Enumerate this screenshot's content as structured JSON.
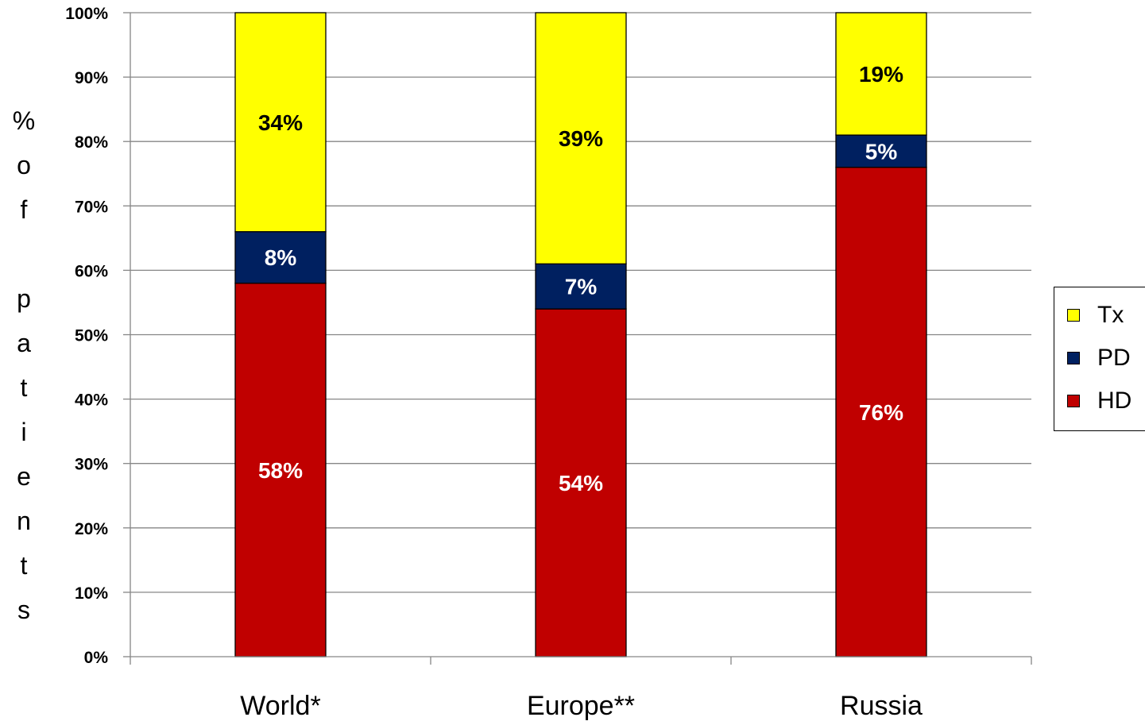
{
  "chart_data": {
    "type": "bar",
    "stacked": true,
    "percent_stacked": true,
    "categories": [
      "World*",
      "Europe**",
      "Russia"
    ],
    "series": [
      {
        "name": "HD",
        "values": [
          58,
          54,
          76
        ],
        "labels": [
          "58%",
          "54%",
          "76%"
        ],
        "color": "#C00000",
        "label_color": "#FFFFFF"
      },
      {
        "name": "PD",
        "values": [
          8,
          7,
          5
        ],
        "labels": [
          "8%",
          "7%",
          "5%"
        ],
        "color": "#002060",
        "label_color": "#FFFFFF"
      },
      {
        "name": "Tx",
        "values": [
          34,
          39,
          19
        ],
        "labels": [
          "34%",
          "39%",
          "19%"
        ],
        "color": "#FFFF00",
        "label_color": "#000000"
      }
    ],
    "ylabel": "% of patients",
    "ylabel_chars": [
      "%",
      "o",
      "f",
      "",
      "p",
      "a",
      "t",
      "i",
      "e",
      "n",
      "t",
      "s"
    ],
    "ylim": [
      0,
      100
    ],
    "yticks": [
      "0%",
      "10%",
      "20%",
      "30%",
      "40%",
      "50%",
      "60%",
      "70%",
      "80%",
      "90%",
      "100%"
    ],
    "grid": true,
    "legend_position": "right",
    "legend_order": [
      "Tx",
      "PD",
      "HD"
    ],
    "gridline_color": "#868686"
  }
}
